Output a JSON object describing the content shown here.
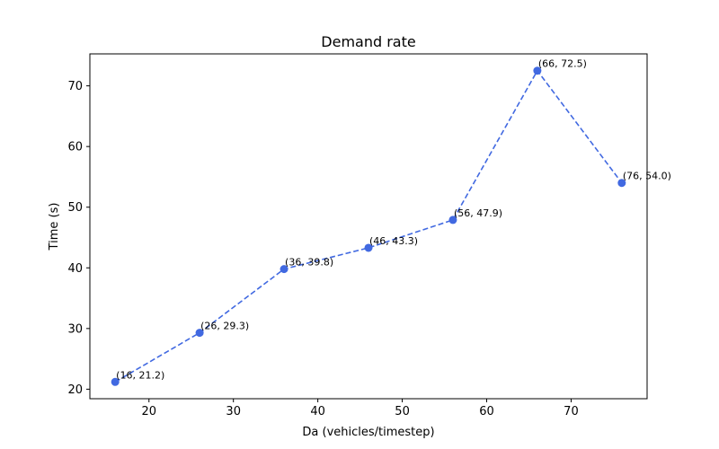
{
  "chart_data": {
    "type": "line",
    "title": "Demand rate",
    "xlabel": "Da (vehicles/timestep)",
    "ylabel": "Time (s)",
    "x": [
      16,
      26,
      36,
      46,
      56,
      66,
      76
    ],
    "series": [
      {
        "values": [
          21.2,
          29.3,
          39.8,
          43.3,
          47.9,
          72.5,
          54.0
        ]
      }
    ],
    "data_labels": [
      "(16, 21.2)",
      "(26, 29.3)",
      "(36, 39.8)",
      "(46, 43.3)",
      "(56, 47.9)",
      "(66, 72.5)",
      "(76, 54.0)"
    ],
    "xlim": [
      13,
      79
    ],
    "ylim": [
      18.43,
      75.27
    ],
    "x_ticks": [
      20,
      30,
      40,
      50,
      60,
      70
    ],
    "y_ticks": [
      20,
      30,
      40,
      50,
      60,
      70
    ],
    "line_style": "dashed",
    "marker": "circle",
    "color": "#4169e1",
    "grid": false,
    "legend": "none"
  }
}
